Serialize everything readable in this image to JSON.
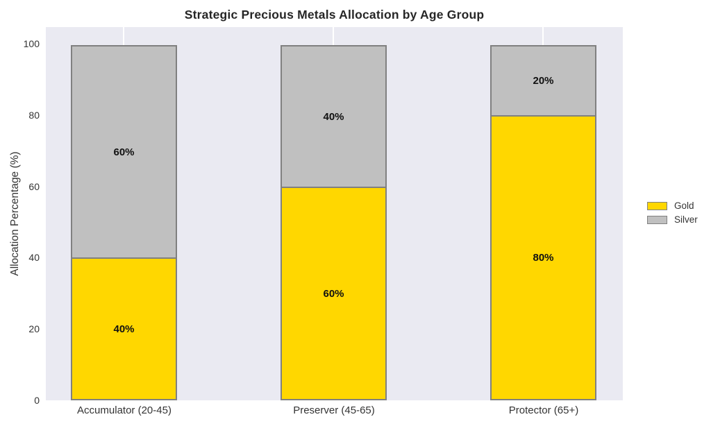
{
  "chart_data": {
    "type": "bar",
    "stacked": true,
    "title": "Strategic Precious Metals Allocation by Age Group",
    "xlabel": "",
    "ylabel": "Allocation Percentage (%)",
    "categories": [
      "Accumulator (20-45)",
      "Preserver (45-65)",
      "Protector (65+)"
    ],
    "series": [
      {
        "name": "Gold",
        "values": [
          40,
          60,
          80
        ],
        "labels": [
          "40%",
          "60%",
          "80%"
        ],
        "color": "#FFD700"
      },
      {
        "name": "Silver",
        "values": [
          60,
          40,
          20
        ],
        "labels": [
          "60%",
          "40%",
          "20%"
        ],
        "color": "#C0C0C0"
      }
    ],
    "yticks": [
      "0",
      "20",
      "40",
      "60",
      "80",
      "100"
    ],
    "ylim": [
      0,
      105
    ],
    "grid": "vertical-white-gridlines-at-categories",
    "legend_position": "right-outside",
    "colors": {
      "gold": "#FFD700",
      "silver": "#C0C0C0",
      "bar_edge": "#808080",
      "plot_bg": "#EAEAF2",
      "grid": "#FFFFFF",
      "figure_bg": "#FFFFFF",
      "title_text": "#262626",
      "tick_text": "#333333",
      "bar_label_text": "#111111"
    }
  }
}
